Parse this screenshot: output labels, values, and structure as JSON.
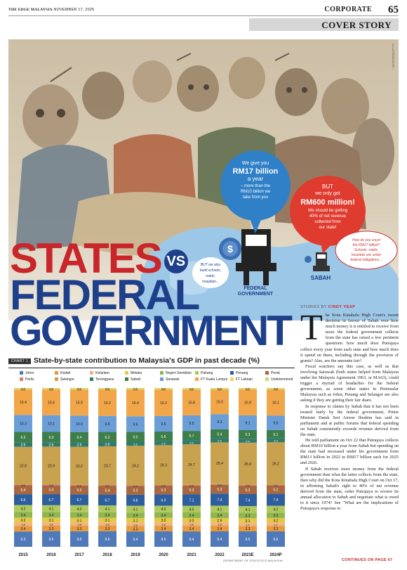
{
  "header": {
    "publication": "THE EDGE MALAYSIA",
    "date": "NOVEMBER 17, 2025",
    "section": "CORPORATE",
    "page_number": "65"
  },
  "cover_story_label": "COVER STORY",
  "illustration": {
    "credit": "ILLUSTRATION BY ...",
    "speech_blue": [
      "We give you",
      "RM17 billion",
      "a year",
      "– more than the",
      "RM10 billion we",
      "take from you"
    ],
    "speech_red": [
      "BUT",
      "we only got",
      "RM600 million!",
      "We should be getting",
      "40% of net revenue",
      "collected from",
      "our state!"
    ],
    "speech_white_right": [
      "How do you count",
      "the RM17 billion?",
      "Schools, roads,",
      "hospitals are under",
      "federal obligations..."
    ],
    "speech_white_left": [
      "BUT we also",
      "build schools,",
      "roads,",
      "hospitals..."
    ],
    "federal_label": [
      "FEDERAL",
      "GOVERNMENT"
    ],
    "sabah_label": "SABAH",
    "coin_symbol": "$"
  },
  "headline": {
    "line1": "STATES",
    "vs": "VS",
    "line2": "FEDERAL",
    "line3": "GOVERNMENT"
  },
  "byline": {
    "prefix": "STORIES BY",
    "author": "CINDY YEAP"
  },
  "article": {
    "dropcap": "T",
    "paragraphs": [
      "he Kota Kinabalu High Court's recent decision in favour of Sabah over how much money it is entitled to receive from taxes the federal government collects from the state has raised a few pertinent questions: how much does Putrajaya collect every year from each state and how much does it spend on them, including through the provision of grants? Also, are the amounts fair?",
      "Fiscal watchers say this case, as well as that involving Sarawak (both states helped form Malaysia under the Malaysia Agreement 1963, or MA63), could trigger a myriad of headaches for the federal government, as some other states in Peninsular Malaysia such as Johor, Penang and Selangor are also asking if they are getting their fair share.",
      "In response to claims by Sabah that it has not been treated fairly by the federal government, Prime Minister Datuk Seri Anwar Ibrahim has said in parliament and at public forums that federal spending on Sabah consistently exceeds revenue derived from the state.",
      "He told parliament on Oct 22 that Putrajaya collects about RM10 billion a year from Sabah but spending on the state had increased under his government from RM13 billion in 2022 to RM17 billion each for 2025 and 2026.",
      "If Sabah receives more money from the federal government than what the latter collects from the state, then why did the Kota Kinabalu High Court on Oct 17, in affirming Sabah's right to 40% of net revenue derived from the state, order Putrajaya to review its annual allocation to Sabah and negotiate what is owed to it since 1974? See \"What are the implications of Putrajaya's response to"
    ],
    "continues": "CONTINUES ON PAGE 67"
  },
  "chart_data": {
    "type": "bar",
    "stacked": true,
    "normalized": true,
    "label": "CHART 1",
    "title": "State-by-state contribution to Malaysia's GDP in past decade (%)",
    "categories": [
      "2015",
      "2016",
      "2017",
      "2018",
      "2019",
      "2020",
      "2021",
      "2022",
      "2023E",
      "2024P"
    ],
    "ylim": [
      0,
      100
    ],
    "legend": [
      "Johor",
      "Kedah",
      "Kelantan",
      "Melaka",
      "Negeri Sembilan",
      "Pahang",
      "Penang",
      "Perak",
      "Perlis",
      "Selangor",
      "Terengganu",
      "Sabah",
      "Sarawak",
      "FT Kuala Lumpur",
      "FT Labuan",
      "Undetermined"
    ],
    "series": [
      {
        "name": "Johor",
        "color": "#4f79b8",
        "values": [
          9.3,
          9.5,
          9.5,
          9.6,
          9.4,
          9.5,
          9.4,
          9.4,
          9.5,
          9.6
        ]
      },
      {
        "name": "Kedah",
        "color": "#e89a3a",
        "values": [
          3.4,
          3.3,
          3.3,
          3.3,
          3.3,
          3.4,
          3.4,
          3.4,
          3.3,
          3.3
        ]
      },
      {
        "name": "Kelantan",
        "color": "#f0b28a",
        "values": [
          1.8,
          1.8,
          1.8,
          1.8,
          1.8,
          1.8,
          1.8,
          1.8,
          1.7,
          1.7
        ]
      },
      {
        "name": "Melaka",
        "color": "#e5c84a",
        "values": [
          3.2,
          3.1,
          3.1,
          3.1,
          3.1,
          3.0,
          3.0,
          2.9,
          3.1,
          3.2
        ]
      },
      {
        "name": "Negeri Sembilan",
        "color": "#8fb64f",
        "values": [
          3.4,
          3.4,
          3.4,
          3.4,
          3.4,
          3.4,
          3.4,
          3.4,
          3.3,
          3.3
        ]
      },
      {
        "name": "Pahang",
        "color": "#b0c95e",
        "values": [
          4.2,
          4.1,
          4.2,
          4.1,
          4.1,
          4.0,
          4.0,
          4.1,
          4.1,
          4.2
        ]
      },
      {
        "name": "Penang",
        "color": "#2d5e9e",
        "values": [
          6.6,
          6.7,
          6.7,
          6.7,
          6.8,
          6.9,
          7.1,
          7.4,
          7.4,
          7.4
        ]
      },
      {
        "name": "Perak",
        "color": "#a8673e",
        "values": [
          5.4,
          5.4,
          5.3,
          5.4,
          5.3,
          5.3,
          5.3,
          5.3,
          5.3,
          5.2
        ]
      },
      {
        "name": "Perlis",
        "color": "#d47f72",
        "values": [
          0.5,
          0.5,
          0.4,
          0.4,
          0.4,
          0.4,
          0.4,
          0.4,
          0.4,
          0.4
        ]
      },
      {
        "name": "Selangor",
        "color": "#c9a24f",
        "values": [
          22.8,
          22.9,
          23.2,
          23.7,
          24.2,
          24.3,
          24.7,
          25.4,
          25.9,
          26.2
        ]
      },
      {
        "name": "Terengganu",
        "color": "#2f7a6b",
        "values": [
          2.6,
          2.6,
          2.6,
          2.6,
          2.5,
          2.5,
          2.5,
          2.5,
          2.4,
          2.4
        ]
      },
      {
        "name": "Sabah",
        "color": "#3d7e4a",
        "values": [
          6.5,
          6.3,
          6.4,
          6.2,
          6.0,
          5.8,
          5.7,
          5.4,
          5.3,
          5.1
        ]
      },
      {
        "name": "Sarawak",
        "color": "#6b9ed6",
        "values": [
          10.3,
          10.1,
          10.0,
          9.8,
          9.6,
          9.5,
          9.5,
          9.3,
          9.1,
          9.0
        ]
      },
      {
        "name": "FT Kuala Lumpur",
        "color": "#f2a64a",
        "values": [
          15.4,
          15.6,
          15.9,
          16.2,
          16.4,
          16.2,
          15.8,
          15.0,
          15.9,
          16.1
        ]
      },
      {
        "name": "FT Labuan",
        "color": "#f4d35e",
        "values": [
          0.5,
          0.5,
          0.5,
          0.5,
          0.5,
          0.5,
          0.5,
          0.5,
          0.5,
          0.5
        ]
      },
      {
        "name": "Undetermined",
        "color": "#c7d97a",
        "values": [
          0.4,
          0.4,
          0.4,
          0.4,
          0.4,
          0.4,
          0.4,
          0.4,
          0.4,
          0.4
        ]
      }
    ],
    "source": "DEPARTMENT OF STATISTICS MALAYSIA"
  }
}
